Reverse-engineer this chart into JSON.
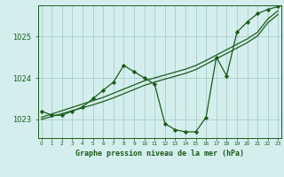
{
  "title": "Graphe pression niveau de la mer (hPa)",
  "bg_color": "#d4eeee",
  "plot_bg_color": "#d4eeee",
  "grid_color": "#a8cccc",
  "line_color": "#1a5c1a",
  "marker_color": "#1a5c1a",
  "ylim": [
    1022.55,
    1025.75
  ],
  "yticks": [
    1023,
    1024,
    1025
  ],
  "hours": [
    0,
    1,
    2,
    3,
    4,
    5,
    6,
    7,
    8,
    9,
    10,
    11,
    12,
    13,
    14,
    15,
    16,
    17,
    18,
    19,
    20,
    21,
    22,
    23
  ],
  "xtick_labels": [
    "0",
    "1",
    "2",
    "3",
    "4",
    "5",
    "6",
    "7",
    "8",
    "9",
    "10",
    "11",
    "12",
    "13",
    "14",
    "15",
    "16",
    "17",
    "18",
    "19",
    "20",
    "21",
    "22",
    "23"
  ],
  "series_main": [
    1023.2,
    1023.1,
    1023.1,
    1023.2,
    1023.3,
    1023.5,
    1023.7,
    1023.9,
    1024.3,
    1024.15,
    1024.0,
    1023.85,
    1022.9,
    1022.75,
    1022.7,
    1022.7,
    1023.05,
    1024.5,
    1024.05,
    1025.1,
    1025.35,
    1025.55,
    1025.65,
    1025.72
  ],
  "series_trend1": [
    1023.05,
    1023.13,
    1023.21,
    1023.29,
    1023.37,
    1023.45,
    1023.53,
    1023.63,
    1023.73,
    1023.83,
    1023.93,
    1024.0,
    1024.07,
    1024.14,
    1024.21,
    1024.3,
    1024.42,
    1024.55,
    1024.68,
    1024.81,
    1024.94,
    1025.1,
    1025.42,
    1025.62
  ],
  "series_trend2": [
    1023.0,
    1023.07,
    1023.14,
    1023.21,
    1023.28,
    1023.35,
    1023.43,
    1023.52,
    1023.62,
    1023.72,
    1023.82,
    1023.9,
    1023.97,
    1024.04,
    1024.11,
    1024.2,
    1024.33,
    1024.46,
    1024.59,
    1024.72,
    1024.85,
    1025.01,
    1025.33,
    1025.53
  ]
}
